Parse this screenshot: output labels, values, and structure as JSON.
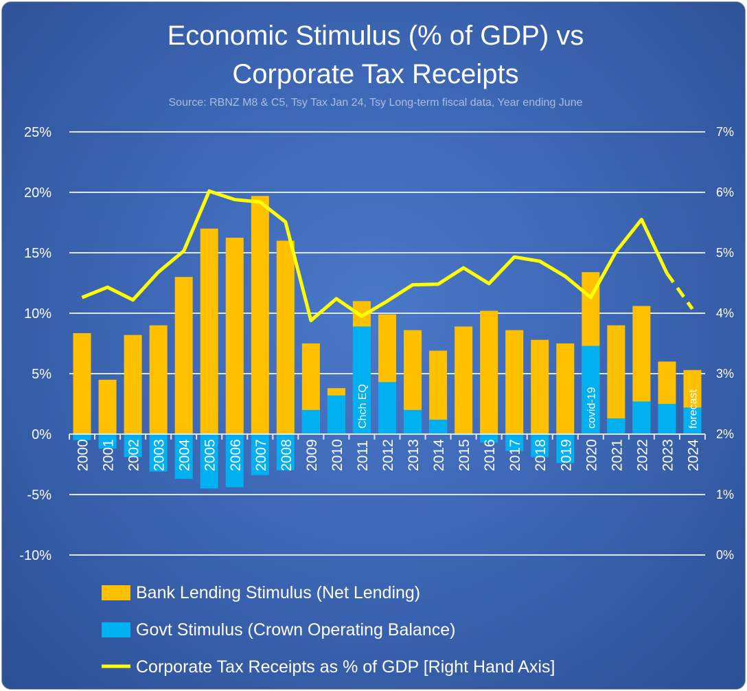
{
  "chart_data": {
    "type": "bar",
    "title_line1": "Economic Stimulus (% of GDP) vs",
    "title_line2": "Corporate Tax Receipts",
    "subtitle": "Source: RBNZ M8 & C5, Tsy Tax Jan 24, Tsy Long-term fiscal data, Year ending June",
    "categories": [
      "2000",
      "2001",
      "2002",
      "2003",
      "2004",
      "2005",
      "2006",
      "2007",
      "2008",
      "2009",
      "2010",
      "2011",
      "2012",
      "2013",
      "2014",
      "2015",
      "2016",
      "2017",
      "2018",
      "2019",
      "2020",
      "2021",
      "2022",
      "2023",
      "2024"
    ],
    "left_axis": {
      "ylim": [
        -10,
        25
      ],
      "ticks": [
        "-10%",
        "-5%",
        "0%",
        "5%",
        "10%",
        "15%",
        "20%",
        "25%"
      ],
      "tick_values": [
        -10,
        -5,
        0,
        5,
        10,
        15,
        20,
        25
      ]
    },
    "right_axis": {
      "ylim": [
        0,
        7
      ],
      "ticks": [
        "0%",
        "1%",
        "2%",
        "3%",
        "4%",
        "5%",
        "6%",
        "7%"
      ],
      "tick_values": [
        0,
        1,
        2,
        3,
        4,
        5,
        6,
        7
      ]
    },
    "series": [
      {
        "name": "Bank Lending Stimulus (Net Lending)",
        "type": "bar",
        "color": "#ffc000",
        "note": "total stacked height (% of GDP)",
        "values": [
          8.35,
          4.5,
          8.2,
          9.0,
          13.0,
          17.0,
          16.25,
          19.7,
          16.0,
          7.5,
          3.8,
          11.0,
          9.9,
          8.6,
          6.9,
          8.9,
          10.2,
          8.6,
          7.8,
          7.5,
          13.4,
          9.0,
          10.6,
          6.0,
          5.3
        ]
      },
      {
        "name": "Govt Stimulus (Crown Operating Balance)",
        "type": "bar",
        "color": "#00b0f0",
        "values": [
          -0.5,
          -1.2,
          -1.9,
          -3.1,
          -3.7,
          -4.5,
          -4.4,
          -3.4,
          -3.0,
          2.0,
          3.2,
          8.9,
          4.3,
          2.0,
          1.2,
          -0.1,
          -0.7,
          -1.4,
          -1.9,
          -2.4,
          7.3,
          1.3,
          2.7,
          2.5,
          2.2
        ]
      },
      {
        "name": "Corporate Tax Receipts as % of GDP [Right Hand Axis]",
        "type": "line",
        "axis": "right",
        "color": "#ffff00",
        "dashed_from": "2023",
        "values": [
          4.26,
          4.43,
          4.22,
          4.68,
          5.03,
          6.02,
          5.88,
          5.84,
          5.51,
          3.88,
          4.24,
          3.95,
          4.2,
          4.47,
          4.48,
          4.75,
          4.49,
          4.93,
          4.86,
          4.61,
          4.26,
          5.02,
          5.55,
          4.66,
          4.07
        ]
      }
    ],
    "annotations": [
      {
        "category": "2011",
        "text": "Chch EQ"
      },
      {
        "category": "2020",
        "text": "covid-19"
      },
      {
        "category": "2024",
        "text": "forecast"
      }
    ],
    "grid": true,
    "legend": "bottom-left"
  }
}
